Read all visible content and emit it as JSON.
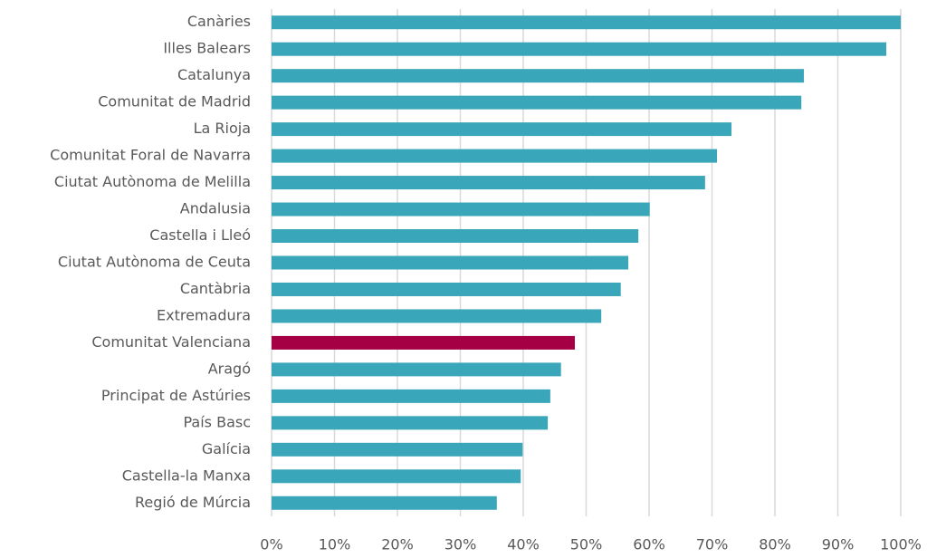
{
  "chart_data": {
    "type": "barh",
    "categories": [
      "Canàries",
      "Illes Balears",
      "Catalunya",
      "Comunitat de Madrid",
      "La Rioja",
      "Comunitat Foral de Navarra",
      "Ciutat Autònoma de Melilla",
      "Andalusia",
      "Castella i Lleó",
      "Ciutat Autònoma de Ceuta",
      "Cantàbria",
      "Extremadura",
      "Comunitat Valenciana",
      "Aragó",
      "Principat de Astúries",
      "País Basc",
      "Galícia",
      "Castella-la Manxa",
      "Regió de Múrcia"
    ],
    "values": [
      100,
      97.7,
      84.6,
      84.2,
      73.1,
      70.8,
      68.9,
      60.1,
      58.3,
      56.7,
      55.5,
      52.4,
      48.2,
      46.0,
      44.3,
      43.9,
      39.9,
      39.6,
      35.8
    ],
    "colors": [
      "#3aa6b9",
      "#3aa6b9",
      "#3aa6b9",
      "#3aa6b9",
      "#3aa6b9",
      "#3aa6b9",
      "#3aa6b9",
      "#3aa6b9",
      "#3aa6b9",
      "#3aa6b9",
      "#3aa6b9",
      "#3aa6b9",
      "#a50044",
      "#3aa6b9",
      "#3aa6b9",
      "#3aa6b9",
      "#3aa6b9",
      "#3aa6b9",
      "#3aa6b9"
    ],
    "xlim": [
      0,
      100
    ],
    "xticks": [
      {
        "value": 0,
        "label": "0%"
      },
      {
        "value": 10,
        "label": "10%"
      },
      {
        "value": 20,
        "label": "20%"
      },
      {
        "value": 30,
        "label": "30%"
      },
      {
        "value": 40,
        "label": "40%"
      },
      {
        "value": 50,
        "label": "50%"
      },
      {
        "value": 60,
        "label": "60%"
      },
      {
        "value": 70,
        "label": "70%"
      },
      {
        "value": 80,
        "label": "80%"
      },
      {
        "value": 90,
        "label": "90%"
      },
      {
        "value": 100,
        "label": "100%"
      }
    ],
    "grid": true
  }
}
